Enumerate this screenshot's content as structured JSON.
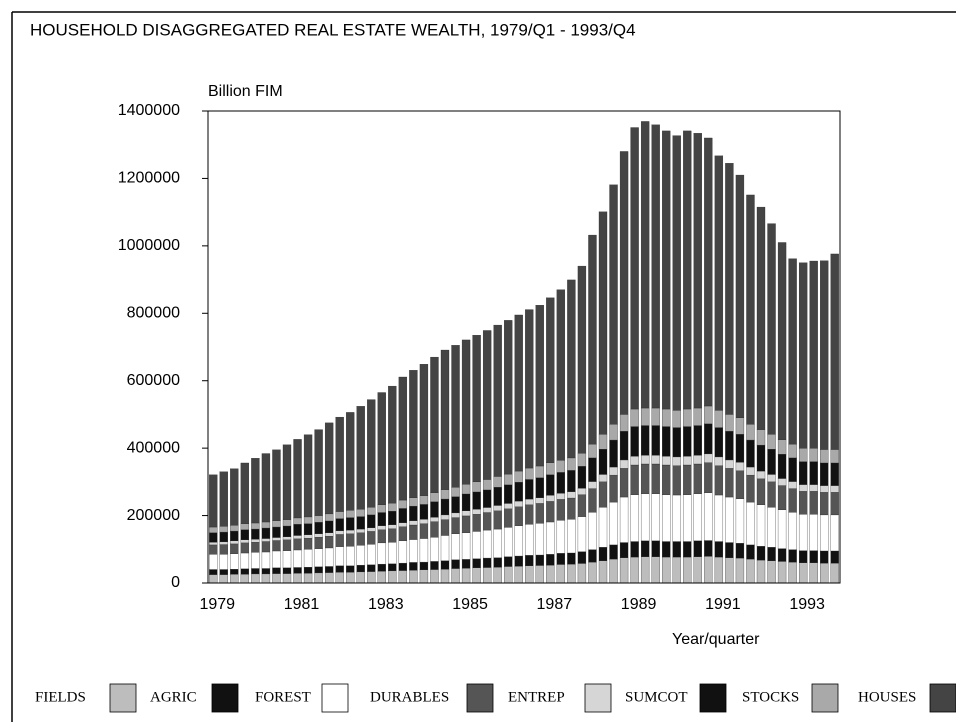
{
  "chart_data": {
    "type": "stacked_bar",
    "title": "HOUSEHOLD DISAGGREGATED REAL ESTATE WEALTH, 1979/Q1 - 1993/Q4",
    "y_label": "Billion FIM",
    "x_label": "Year/quarter",
    "categories": [
      "1979",
      null,
      null,
      null,
      null,
      null,
      null,
      null,
      "1981",
      null,
      null,
      null,
      null,
      null,
      null,
      null,
      "1983",
      null,
      null,
      null,
      null,
      null,
      null,
      null,
      "1985",
      null,
      null,
      null,
      null,
      null,
      null,
      null,
      "1987",
      null,
      null,
      null,
      null,
      null,
      null,
      null,
      "1989",
      null,
      null,
      null,
      null,
      null,
      null,
      null,
      "1991",
      null,
      null,
      null,
      null,
      null,
      null,
      null,
      "1993",
      null,
      null,
      null
    ],
    "ylim": [
      0,
      1400000
    ],
    "yticks": [
      0,
      200000,
      400000,
      600000,
      800000,
      1000000,
      1200000,
      1400000
    ],
    "series": [
      {
        "name": "FIELDS",
        "color": "#bdbdbd",
        "values": [
          25000,
          25000,
          26000,
          26000,
          27000,
          27000,
          28000,
          28000,
          29000,
          29000,
          30000,
          31000,
          32000,
          32000,
          33000,
          34000,
          35000,
          36000,
          37000,
          38000,
          39000,
          40000,
          41000,
          43000,
          44000,
          45000,
          46000,
          47000,
          49000,
          50000,
          51000,
          52000,
          53000,
          55000,
          56000,
          58000,
          62000,
          66000,
          71000,
          75000,
          77000,
          78000,
          78000,
          77000,
          77000,
          77000,
          78000,
          79000,
          77000,
          75000,
          74000,
          71000,
          68000,
          66000,
          64000,
          62000,
          60000,
          60000,
          59000,
          59000
        ]
      },
      {
        "name": "AGRIC",
        "color": "#111111",
        "values": [
          15000,
          15000,
          15000,
          16000,
          16000,
          16000,
          17000,
          17000,
          17000,
          18000,
          18000,
          18000,
          19000,
          19000,
          20000,
          20000,
          21000,
          21000,
          22000,
          23000,
          23000,
          24000,
          25000,
          26000,
          26000,
          27000,
          28000,
          28000,
          29000,
          30000,
          31000,
          31000,
          32000,
          33000,
          33000,
          35000,
          37000,
          40000,
          42000,
          45000,
          46000,
          47000,
          47000,
          46000,
          46000,
          46000,
          47000,
          47000,
          46000,
          45000,
          44000,
          42000,
          41000,
          40000,
          38000,
          37000,
          36000,
          36000,
          36000,
          36000
        ]
      },
      {
        "name": "FOREST",
        "color": "#ffffff",
        "values": [
          45000,
          45000,
          46000,
          47000,
          48000,
          49000,
          50000,
          51000,
          52000,
          53000,
          54000,
          55000,
          57000,
          58000,
          59000,
          61000,
          63000,
          64000,
          66000,
          68000,
          70000,
          72000,
          75000,
          77000,
          79000,
          81000,
          83000,
          85000,
          87000,
          90000,
          92000,
          94000,
          96000,
          98000,
          100000,
          104000,
          111000,
          119000,
          127000,
          135000,
          139000,
          140000,
          140000,
          139000,
          138000,
          139000,
          140000,
          142000,
          138000,
          135000,
          132000,
          127000,
          123000,
          119000,
          115000,
          111000,
          108000,
          108000,
          107000,
          107000
        ]
      },
      {
        "name": "DURABLES",
        "color": "#555555",
        "values": [
          28000,
          29000,
          29000,
          30000,
          30000,
          31000,
          31000,
          32000,
          33000,
          33000,
          34000,
          35000,
          36000,
          37000,
          37000,
          38000,
          39000,
          40000,
          42000,
          43000,
          44000,
          46000,
          47000,
          48000,
          50000,
          51000,
          52000,
          54000,
          55000,
          56000,
          58000,
          59000,
          61000,
          62000,
          63000,
          65000,
          70000,
          75000,
          80000,
          85000,
          88000,
          88000,
          88000,
          88000,
          87000,
          88000,
          88000,
          89000,
          87000,
          85000,
          83000,
          80000,
          77000,
          75000,
          72000,
          70000,
          68000,
          68000,
          67000,
          67000
        ]
      },
      {
        "name": "ENTREP",
        "color": "#d6d6d6",
        "values": [
          8000,
          8000,
          9000,
          9000,
          9000,
          9000,
          9000,
          9000,
          10000,
          10000,
          10000,
          10000,
          11000,
          11000,
          11000,
          11000,
          12000,
          12000,
          12000,
          13000,
          13000,
          13000,
          14000,
          14000,
          15000,
          15000,
          15000,
          16000,
          16000,
          17000,
          17000,
          17000,
          18000,
          18000,
          19000,
          19000,
          21000,
          22000,
          24000,
          25000,
          26000,
          26000,
          26000,
          26000,
          26000,
          26000,
          26000,
          26000,
          26000,
          25000,
          25000,
          24000,
          23000,
          22000,
          21000,
          21000,
          20000,
          20000,
          20000,
          20000
        ]
      },
      {
        "name": "SUMCOT",
        "color": "#111111",
        "values": [
          28000,
          29000,
          29000,
          30000,
          30000,
          31000,
          31000,
          32000,
          33000,
          33000,
          34000,
          35000,
          36000,
          37000,
          37000,
          38000,
          39000,
          40000,
          42000,
          43000,
          44000,
          46000,
          47000,
          48000,
          50000,
          51000,
          52000,
          54000,
          55000,
          56000,
          58000,
          59000,
          61000,
          62000,
          63000,
          65000,
          70000,
          75000,
          80000,
          85000,
          88000,
          88000,
          88000,
          88000,
          87000,
          88000,
          88000,
          89000,
          87000,
          85000,
          83000,
          80000,
          77000,
          75000,
          72000,
          70000,
          68000,
          68000,
          67000,
          67000
        ]
      },
      {
        "name": "STOCKS",
        "color": "#a9a9a9",
        "values": [
          17000,
          17000,
          17000,
          18000,
          18000,
          18000,
          19000,
          19000,
          19000,
          20000,
          20000,
          21000,
          21000,
          22000,
          22000,
          23000,
          23000,
          24000,
          25000,
          25000,
          26000,
          27000,
          28000,
          28000,
          29000,
          30000,
          31000,
          32000,
          32000,
          33000,
          34000,
          35000,
          36000,
          36000,
          37000,
          39000,
          41000,
          44000,
          47000,
          50000,
          52000,
          52000,
          52000,
          52000,
          51000,
          52000,
          52000,
          53000,
          51000,
          50000,
          49000,
          47000,
          46000,
          44000,
          43000,
          41000,
          40000,
          40000,
          40000,
          40000
        ]
      },
      {
        "name": "HOUSES",
        "color": "#444444",
        "values": [
          155000,
          162000,
          168000,
          180000,
          192000,
          203000,
          210000,
          222000,
          233000,
          244000,
          255000,
          270000,
          280000,
          290000,
          305000,
          319000,
          333000,
          347000,
          365000,
          378000,
          390000,
          402000,
          414000,
          421000,
          428000,
          435000,
          442000,
          449000,
          456000,
          463000,
          470000,
          477000,
          489000,
          506000,
          528000,
          555000,
          620000,
          660000,
          710000,
          780000,
          835000,
          850000,
          840000,
          825000,
          815000,
          825000,
          815000,
          795000,
          755000,
          745000,
          720000,
          680000,
          660000,
          625000,
          585000,
          550000,
          550000,
          555000,
          560000,
          580000
        ]
      }
    ]
  }
}
